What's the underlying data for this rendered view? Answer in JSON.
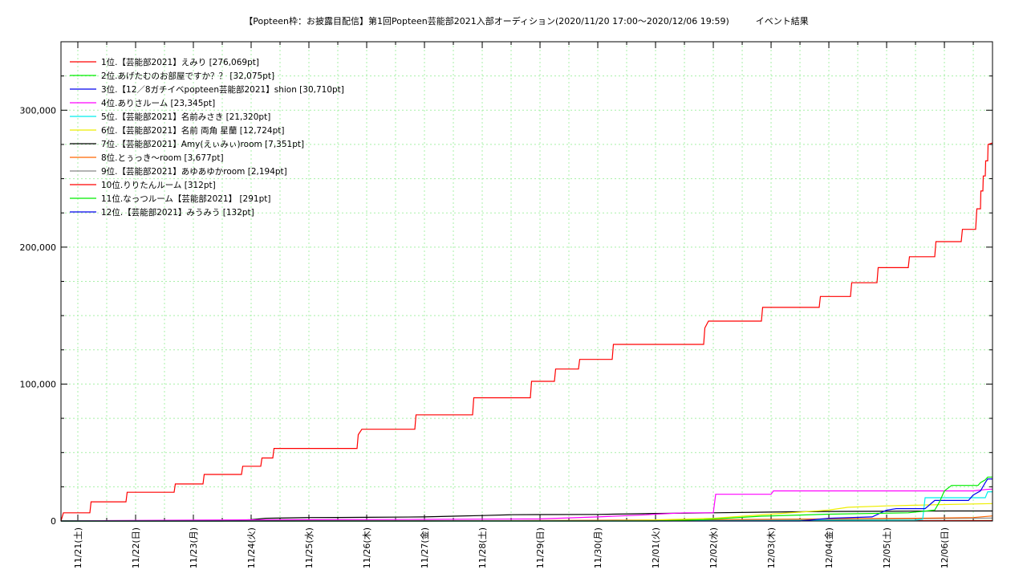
{
  "chart_data": {
    "type": "line",
    "title": "【Popteen枠：お披露目配信】第1回Popteen芸能部2021入部オーディション(2020/11/20 17:00～2020/12/06 19:59)　　　イベント結果",
    "xlabel": "",
    "ylabel": "",
    "x_start": "2020-11-20 17:00",
    "x_end": "2020-12-06 19:59",
    "ylim": [
      0,
      350000
    ],
    "yticks": [
      0,
      100000,
      200000,
      300000
    ],
    "ytick_labels": [
      "0",
      "100,000",
      "200,000",
      "300,000"
    ],
    "xtick_labels": [
      "11/21(土)",
      "11/22(日)",
      "11/23(月)",
      "11/24(火)",
      "11/25(水)",
      "11/26(木)",
      "11/27(金)",
      "11/28(土)",
      "11/29(日)",
      "11/30(月)",
      "12/01(火)",
      "12/02(水)",
      "12/03(木)",
      "12/04(金)",
      "12/05(土)",
      "12/06(日)"
    ],
    "xtick_dates": [
      "2020-11-21",
      "2020-11-22",
      "2020-11-23",
      "2020-11-24",
      "2020-11-25",
      "2020-11-26",
      "2020-11-27",
      "2020-11-28",
      "2020-11-29",
      "2020-11-30",
      "2020-12-01",
      "2020-12-02",
      "2020-12-03",
      "2020-12-04",
      "2020-12-05",
      "2020-12-06"
    ],
    "grid": true,
    "legend_position": "top-left",
    "series": [
      {
        "name": "1位.【芸能部2021】えみり [276,069pt]",
        "color": "#ff0000",
        "points": [
          [
            "2020-11-20 17:00",
            0
          ],
          [
            "2020-11-20 18:00",
            6000
          ],
          [
            "2020-11-21 05:00",
            6000
          ],
          [
            "2020-11-21 05:30",
            14000
          ],
          [
            "2020-11-21 20:00",
            14000
          ],
          [
            "2020-11-21 20:30",
            21000
          ],
          [
            "2020-11-22 16:00",
            21000
          ],
          [
            "2020-11-22 16:30",
            27000
          ],
          [
            "2020-11-23 04:00",
            27000
          ],
          [
            "2020-11-23 04:30",
            34000
          ],
          [
            "2020-11-23 20:00",
            34000
          ],
          [
            "2020-11-23 20:30",
            40000
          ],
          [
            "2020-11-24 04:00",
            40000
          ],
          [
            "2020-11-24 04:30",
            46000
          ],
          [
            "2020-11-24 09:00",
            46000
          ],
          [
            "2020-11-24 09:30",
            53000
          ],
          [
            "2020-11-25 20:00",
            53000
          ],
          [
            "2020-11-25 20:30",
            63000
          ],
          [
            "2020-11-25 22:00",
            67000
          ],
          [
            "2020-11-26 20:00",
            67000
          ],
          [
            "2020-11-26 20:30",
            77500
          ],
          [
            "2020-11-27 20:00",
            77500
          ],
          [
            "2020-11-27 20:30",
            90000
          ],
          [
            "2020-11-28 20:00",
            90000
          ],
          [
            "2020-11-28 20:30",
            102000
          ],
          [
            "2020-11-29 06:00",
            102000
          ],
          [
            "2020-11-29 06:30",
            111000
          ],
          [
            "2020-11-29 16:00",
            111000
          ],
          [
            "2020-11-29 16:30",
            118000
          ],
          [
            "2020-11-30 06:00",
            118000
          ],
          [
            "2020-11-30 06:30",
            129000
          ],
          [
            "2020-12-01 20:00",
            129000
          ],
          [
            "2020-12-01 20:30",
            141000
          ],
          [
            "2020-12-01 22:00",
            146000
          ],
          [
            "2020-12-02 20:00",
            146000
          ],
          [
            "2020-12-02 20:30",
            156000
          ],
          [
            "2020-12-03 20:00",
            156000
          ],
          [
            "2020-12-03 20:30",
            164000
          ],
          [
            "2020-12-04 09:00",
            164000
          ],
          [
            "2020-12-04 09:30",
            174000
          ],
          [
            "2020-12-04 20:00",
            174000
          ],
          [
            "2020-12-04 20:30",
            185000
          ],
          [
            "2020-12-05 09:00",
            185000
          ],
          [
            "2020-12-05 09:30",
            193000
          ],
          [
            "2020-12-05 20:00",
            193000
          ],
          [
            "2020-12-05 20:30",
            204000
          ],
          [
            "2020-12-06 07:00",
            204000
          ],
          [
            "2020-12-06 07:30",
            213000
          ],
          [
            "2020-12-06 13:00",
            213000
          ],
          [
            "2020-12-06 13:30",
            228000
          ],
          [
            "2020-12-06 15:00",
            228000
          ],
          [
            "2020-12-06 15:10",
            241000
          ],
          [
            "2020-12-06 16:00",
            241000
          ],
          [
            "2020-12-06 16:10",
            252000
          ],
          [
            "2020-12-06 17:00",
            252000
          ],
          [
            "2020-12-06 17:10",
            263000
          ],
          [
            "2020-12-06 18:00",
            263000
          ],
          [
            "2020-12-06 18:10",
            275000
          ],
          [
            "2020-12-06 19:59",
            276069
          ]
        ]
      },
      {
        "name": "2位.あげたむのお部屋ですか？？ [32,075pt]",
        "color": "#00ee00",
        "points": [
          [
            "2020-11-20 17:00",
            0
          ],
          [
            "2020-12-01 00:00",
            0
          ],
          [
            "2020-12-01 20:00",
            1000
          ],
          [
            "2020-12-02 20:00",
            3500
          ],
          [
            "2020-12-04 00:00",
            5000
          ],
          [
            "2020-12-05 09:00",
            6000
          ],
          [
            "2020-12-05 20:00",
            8000
          ],
          [
            "2020-12-05 22:00",
            14000
          ],
          [
            "2020-12-06 00:00",
            22000
          ],
          [
            "2020-12-06 03:00",
            26000
          ],
          [
            "2020-12-06 14:00",
            26000
          ],
          [
            "2020-12-06 15:00",
            28000
          ],
          [
            "2020-12-06 17:00",
            30000
          ],
          [
            "2020-12-06 18:00",
            32075
          ],
          [
            "2020-12-06 19:59",
            32075
          ]
        ]
      },
      {
        "name": "3位.【12／8ガチイベpopteen芸能部2021】shion [30,710pt]",
        "color": "#0000ee",
        "points": [
          [
            "2020-11-20 17:00",
            0
          ],
          [
            "2020-12-03 12:00",
            0
          ],
          [
            "2020-12-04 00:00",
            2000
          ],
          [
            "2020-12-04 18:00",
            3000
          ],
          [
            "2020-12-05 00:00",
            8000
          ],
          [
            "2020-12-05 04:00",
            9000
          ],
          [
            "2020-12-05 16:00",
            9000
          ],
          [
            "2020-12-05 20:00",
            15000
          ],
          [
            "2020-12-06 10:00",
            15000
          ],
          [
            "2020-12-06 12:00",
            19000
          ],
          [
            "2020-12-06 15:00",
            22000
          ],
          [
            "2020-12-06 17:00",
            28000
          ],
          [
            "2020-12-06 18:00",
            30710
          ],
          [
            "2020-12-06 19:59",
            30710
          ]
        ]
      },
      {
        "name": "4位.ありさルーム [23,345pt]",
        "color": "#ff00ff",
        "points": [
          [
            "2020-11-20 17:00",
            0
          ],
          [
            "2020-11-21 12:00",
            300
          ],
          [
            "2020-11-24 00:00",
            800
          ],
          [
            "2020-11-27 00:00",
            1200
          ],
          [
            "2020-11-29 00:00",
            1500
          ],
          [
            "2020-11-30 00:00",
            3000
          ],
          [
            "2020-11-30 20:00",
            4500
          ],
          [
            "2020-12-01 00:00",
            5000
          ],
          [
            "2020-12-01 12:00",
            6000
          ],
          [
            "2020-12-02 00:00",
            6000
          ],
          [
            "2020-12-02 01:00",
            19500
          ],
          [
            "2020-12-03 00:00",
            19500
          ],
          [
            "2020-12-03 01:00",
            22000
          ],
          [
            "2020-12-06 12:00",
            22000
          ],
          [
            "2020-12-06 17:00",
            23000
          ],
          [
            "2020-12-06 19:59",
            23345
          ]
        ]
      },
      {
        "name": "5位.【芸能部2021】名前みさき [21,320pt]",
        "color": "#00eeee",
        "points": [
          [
            "2020-11-20 17:00",
            0
          ],
          [
            "2020-12-01 00:00",
            0
          ],
          [
            "2020-12-03 00:00",
            400
          ],
          [
            "2020-12-05 12:00",
            700
          ],
          [
            "2020-12-05 15:00",
            1200
          ],
          [
            "2020-12-05 16:00",
            17000
          ],
          [
            "2020-12-06 17:00",
            17000
          ],
          [
            "2020-12-06 18:00",
            21320
          ],
          [
            "2020-12-06 19:59",
            21320
          ]
        ]
      },
      {
        "name": "6位.【芸能部2021】名前 両角 星蘭 [12,724pt]",
        "color": "#eeee00",
        "points": [
          [
            "2020-11-20 17:00",
            0
          ],
          [
            "2020-11-30 00:00",
            0
          ],
          [
            "2020-12-01 00:00",
            800
          ],
          [
            "2020-12-02 00:00",
            2000
          ],
          [
            "2020-12-03 00:00",
            5000
          ],
          [
            "2020-12-04 00:00",
            8000
          ],
          [
            "2020-12-04 08:00",
            10000
          ],
          [
            "2020-12-05 00:00",
            11000
          ],
          [
            "2020-12-06 00:00",
            12000
          ],
          [
            "2020-12-06 19:59",
            12724
          ]
        ]
      },
      {
        "name": "7位.【芸能部2021】Amy(えぃみぃ)room [7,351pt]",
        "color": "#000000",
        "points": [
          [
            "2020-11-20 17:00",
            0
          ],
          [
            "2020-11-23 12:00",
            0
          ],
          [
            "2020-11-24 00:00",
            1000
          ],
          [
            "2020-11-24 06:00",
            2000
          ],
          [
            "2020-11-25 00:00",
            2500
          ],
          [
            "2020-11-25 12:00",
            2600
          ],
          [
            "2020-11-26 00:00",
            2700
          ],
          [
            "2020-11-27 00:00",
            3000
          ],
          [
            "2020-11-27 12:00",
            3500
          ],
          [
            "2020-11-28 00:00",
            4000
          ],
          [
            "2020-11-28 12:00",
            4600
          ],
          [
            "2020-11-29 00:00",
            4700
          ],
          [
            "2020-11-30 00:00",
            4800
          ],
          [
            "2020-12-01 00:00",
            5500
          ],
          [
            "2020-12-02 00:00",
            6000
          ],
          [
            "2020-12-03 00:00",
            6500
          ],
          [
            "2020-12-04 00:00",
            7000
          ],
          [
            "2020-12-05 00:00",
            7100
          ],
          [
            "2020-12-06 00:00",
            7300
          ],
          [
            "2020-12-06 19:59",
            7351
          ]
        ]
      },
      {
        "name": "8位.とぅっき〜room [3,677pt]",
        "color": "#ff6600",
        "points": [
          [
            "2020-11-20 17:00",
            0
          ],
          [
            "2020-11-27 00:00",
            0
          ],
          [
            "2020-11-30 00:00",
            500
          ],
          [
            "2020-12-02 00:00",
            1000
          ],
          [
            "2020-12-04 00:00",
            1500
          ],
          [
            "2020-12-05 12:00",
            2000
          ],
          [
            "2020-12-06 12:00",
            2500
          ],
          [
            "2020-12-06 19:59",
            3677
          ]
        ]
      },
      {
        "name": "9位.【芸能部2021】あゆあゆかroom [2,194pt]",
        "color": "#888888",
        "points": [
          [
            "2020-11-20 17:00",
            0
          ],
          [
            "2020-11-27 00:00",
            0
          ],
          [
            "2020-11-30 00:00",
            400
          ],
          [
            "2020-12-02 00:00",
            800
          ],
          [
            "2020-12-04 00:00",
            1200
          ],
          [
            "2020-12-06 00:00",
            1800
          ],
          [
            "2020-12-06 19:59",
            2194
          ]
        ]
      },
      {
        "name": "10位.りりたんルーム [312pt]",
        "color": "#ff0000",
        "points": [
          [
            "2020-11-20 17:00",
            0
          ],
          [
            "2020-11-25 00:00",
            100
          ],
          [
            "2020-12-01 00:00",
            200
          ],
          [
            "2020-12-06 19:59",
            312
          ]
        ]
      },
      {
        "name": "11位.なっつルーム【芸能部2021】 [291pt]",
        "color": "#00ee00",
        "points": [
          [
            "2020-11-20 17:00",
            0
          ],
          [
            "2020-11-26 00:00",
            100
          ],
          [
            "2020-12-02 00:00",
            200
          ],
          [
            "2020-12-06 19:59",
            291
          ]
        ]
      },
      {
        "name": "12位.【芸能部2021】みうみう [132pt]",
        "color": "#0000ee",
        "points": [
          [
            "2020-11-20 17:00",
            0
          ],
          [
            "2020-11-28 00:00",
            60
          ],
          [
            "2020-12-03 00:00",
            100
          ],
          [
            "2020-12-06 19:59",
            132
          ]
        ]
      }
    ]
  }
}
